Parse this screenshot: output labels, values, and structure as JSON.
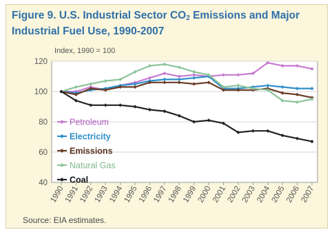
{
  "chart_data": {
    "type": "line",
    "title_part1": "Figure 9.  U.S. Industrial Sector CO",
    "title_sub": "2",
    "title_part2": " Emissions and Major Industrial Fuel Use, 1990-2007",
    "subtitle": "Index, 1990 = 100",
    "source": "Source: EIA estimates.",
    "xlabel": "",
    "ylabel": "",
    "ylim": [
      40,
      120
    ],
    "yticks": [
      40,
      60,
      80,
      100,
      120
    ],
    "grid": true,
    "legend_position": "left",
    "x": [
      "1990",
      "1991",
      "1992",
      "1993",
      "1994",
      "1995",
      "1996",
      "1997",
      "1998",
      "1999",
      "2000",
      "2001",
      "2002",
      "2003",
      "2004",
      "2005",
      "2006",
      "2007"
    ],
    "series": [
      {
        "name": "Petroleum",
        "color": "#c77ad1",
        "label_color": "#b15cc0",
        "bold": false,
        "values": [
          100,
          100,
          103,
          101,
          104,
          106,
          109,
          112,
          110,
          111,
          110,
          111,
          111,
          112,
          119,
          117,
          117,
          115
        ]
      },
      {
        "name": "Electricity",
        "color": "#2f8fc9",
        "label_color": "#2f8fc9",
        "bold": true,
        "values": [
          100,
          99,
          101,
          102,
          104,
          105,
          107,
          108,
          108,
          109,
          110,
          102,
          102,
          103,
          104,
          103,
          102,
          102
        ]
      },
      {
        "name": "Emissions",
        "color": "#6a3b26",
        "label_color": "#5a3322",
        "bold": true,
        "values": [
          100,
          98,
          102,
          101,
          103,
          103,
          106,
          106,
          106,
          105,
          106,
          101,
          101,
          101,
          102,
          99,
          98,
          96
        ]
      },
      {
        "name": "Natural Gas",
        "color": "#8cc49a",
        "label_color": "#7fb88c",
        "bold": false,
        "values": [
          100,
          103,
          105,
          107,
          108,
          113,
          117,
          118,
          116,
          113,
          111,
          103,
          104,
          102,
          101,
          94,
          93,
          95
        ]
      },
      {
        "name": "Coal",
        "color": "#222222",
        "label_color": "#111111",
        "bold": true,
        "values": [
          100,
          94,
          91,
          91,
          91,
          90,
          88,
          87,
          84,
          80,
          81,
          79,
          73,
          74,
          74,
          71,
          69,
          67
        ]
      }
    ]
  }
}
